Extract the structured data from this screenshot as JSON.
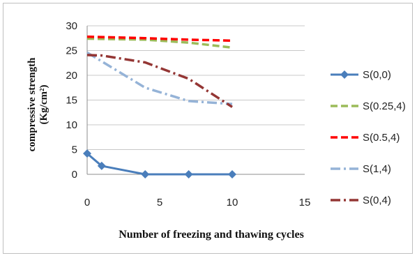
{
  "chart_data": {
    "type": "line",
    "xlabel": "Number of freezing and thawing cycles",
    "ylabel_line1": "compressive strength",
    "ylabel_line2": "(Kg/cm²)",
    "xlim": [
      0,
      15
    ],
    "ylim": [
      0,
      30
    ],
    "x_ticks": [
      "0",
      "5",
      "10",
      "15"
    ],
    "y_ticks": [
      "0",
      "5",
      "10",
      "15",
      "20",
      "25",
      "30"
    ],
    "grid": "horizontal",
    "legend_position": "right",
    "series": [
      {
        "name": "S(0,0)",
        "color": "#4a7ebb",
        "style": "solid-diamond",
        "points": [
          [
            0,
            4.2
          ],
          [
            1,
            1.7
          ],
          [
            4,
            0
          ],
          [
            7,
            0
          ],
          [
            10,
            0
          ]
        ]
      },
      {
        "name": "S(0.25,4)",
        "color": "#9bbb59",
        "style": "dash",
        "points": [
          [
            0,
            27.4
          ],
          [
            4,
            27.2
          ],
          [
            7,
            26.6
          ],
          [
            10,
            25.6
          ]
        ]
      },
      {
        "name": "S(0.5,4)",
        "color": "#ff0000",
        "style": "dash",
        "points": [
          [
            0,
            27.8
          ],
          [
            4,
            27.5
          ],
          [
            7,
            27.2
          ],
          [
            10,
            27.0
          ]
        ]
      },
      {
        "name": "S(1,4)",
        "color": "#95b3d7",
        "style": "dashdot",
        "points": [
          [
            0,
            24.6
          ],
          [
            4,
            17.5
          ],
          [
            7,
            14.8
          ],
          [
            10,
            14.2
          ]
        ]
      },
      {
        "name": "S(0,4)",
        "color": "#943634",
        "style": "dashdot",
        "points": [
          [
            0,
            24.1
          ],
          [
            1,
            24.0
          ],
          [
            4,
            22.6
          ],
          [
            7,
            19.3
          ],
          [
            10,
            13.6
          ]
        ]
      }
    ]
  }
}
